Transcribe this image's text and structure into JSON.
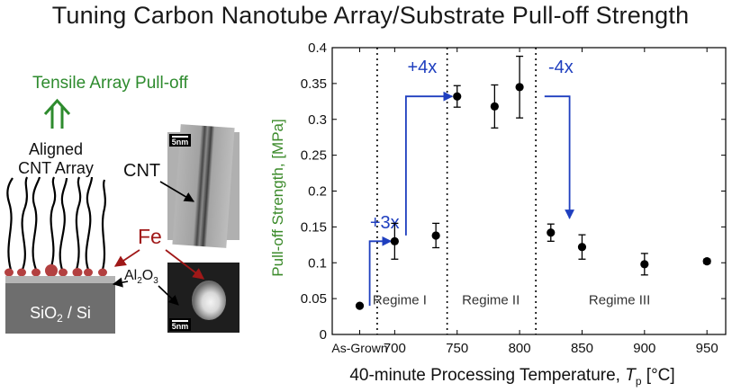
{
  "figure": {
    "title": "Tuning Carbon Nanotube Array/Substrate Pull-off Strength"
  },
  "schematic": {
    "pulloff_label": "Tensile Array Pull-off",
    "array_label_line1": "Aligned",
    "array_label_line2": "CNT Array",
    "cnt_label": "CNT",
    "fe_label": "Fe",
    "al2o3_main": "Al",
    "al2o3_sub1": "2",
    "al2o3_o": "O",
    "al2o3_sub2": "3",
    "substrate_main": "SiO",
    "substrate_sub": "2",
    "substrate_rest": " / Si",
    "scalebar_top": "5nm",
    "scalebar_bottom": "5nm",
    "colors": {
      "green": "#2e8b2e",
      "fe_red": "#a01818",
      "substrate": "#6e6e6e",
      "substrate_top": "#b4b4b4",
      "particle": "#b34040"
    }
  },
  "chart_data": {
    "type": "scatter",
    "xlabel_main": "40-minute Processing Temperature, ",
    "xlabel_var": "T",
    "xlabel_sub": "p",
    "xlabel_unit": " [°C]",
    "ylabel": "Pull-off Strength, [MPa]",
    "ylim": [
      0,
      0.4
    ],
    "xlim": [
      650,
      965
    ],
    "y_ticks": [
      0,
      0.05,
      0.1,
      0.15,
      0.2,
      0.25,
      0.3,
      0.35,
      0.4
    ],
    "y_tick_labels": [
      "0",
      "0.05",
      "0.1",
      "0.15",
      "0.2",
      "0.25",
      "0.3",
      "0.35",
      "0.4"
    ],
    "x_ticks": [
      672,
      700,
      750,
      800,
      850,
      900,
      950
    ],
    "x_tick_labels": [
      "As-Grown",
      "700",
      "750",
      "800",
      "850",
      "900",
      "950"
    ],
    "points": [
      {
        "x": 672,
        "y": 0.04,
        "err": 0.0
      },
      {
        "x": 700,
        "y": 0.13,
        "err": 0.025
      },
      {
        "x": 733,
        "y": 0.138,
        "err": 0.017
      },
      {
        "x": 750,
        "y": 0.332,
        "err": 0.015
      },
      {
        "x": 780,
        "y": 0.318,
        "err": 0.03
      },
      {
        "x": 800,
        "y": 0.345,
        "err": 0.043
      },
      {
        "x": 825,
        "y": 0.142,
        "err": 0.012
      },
      {
        "x": 850,
        "y": 0.122,
        "err": 0.017
      },
      {
        "x": 900,
        "y": 0.098,
        "err": 0.015
      },
      {
        "x": 950,
        "y": 0.102,
        "err": 0.003
      }
    ],
    "dividers": [
      686,
      742,
      813
    ],
    "regimes": [
      {
        "label": "Regime I",
        "x": 704
      },
      {
        "label": "Regime II",
        "x": 777
      },
      {
        "label": "Regime III",
        "x": 880
      }
    ],
    "regime_label_y": 0.042,
    "annotations": [
      {
        "label": "+3x",
        "path": [
          [
            680,
            0.04
          ],
          [
            680,
            0.13
          ],
          [
            697,
            0.13
          ]
        ],
        "label_x": 692,
        "label_y": 0.148
      },
      {
        "label": "+4x",
        "path": [
          [
            709,
            0.138
          ],
          [
            709,
            0.332
          ],
          [
            746,
            0.332
          ]
        ],
        "label_x": 722,
        "label_y": 0.365
      },
      {
        "label": "-4x",
        "path": [
          [
            820,
            0.332
          ],
          [
            840,
            0.332
          ],
          [
            840,
            0.162
          ]
        ],
        "label_x": 833,
        "label_y": 0.365
      }
    ],
    "colors": {
      "ylabel": "#3b8a2a",
      "arrows": "#1f3fbf",
      "markers": "#000000"
    }
  }
}
